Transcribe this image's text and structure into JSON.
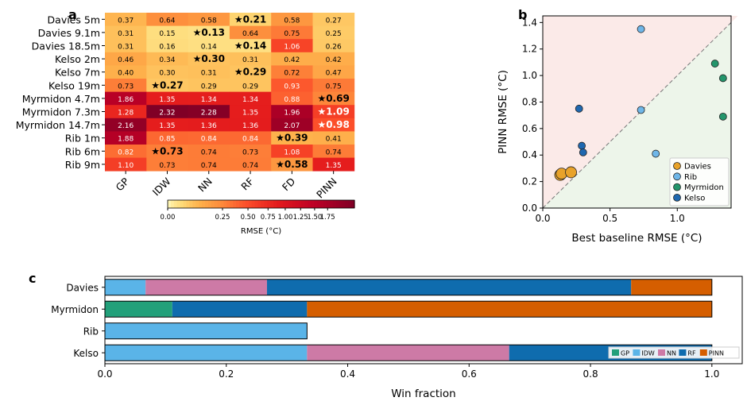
{
  "panel_labels": {
    "a": "a",
    "b": "b",
    "c": "c"
  },
  "chart_data": [
    {
      "type": "heatmap",
      "rows": [
        "Davies 5m",
        "Davies 9.1m",
        "Davies 18.5m",
        "Kelso 2m",
        "Kelso 7m",
        "Kelso 19m",
        "Myrmidon 4.7m",
        "Myrmidon 7.3m",
        "Myrmidon 14.7m",
        "Rib 1m",
        "Rib 6m",
        "Rib 9m"
      ],
      "columns": [
        "GP",
        "IDW",
        "NN",
        "RF",
        "FD",
        "PINN"
      ],
      "values": [
        [
          0.37,
          0.64,
          0.58,
          0.21,
          0.58,
          0.27
        ],
        [
          0.31,
          0.15,
          0.13,
          0.64,
          0.75,
          0.25
        ],
        [
          0.31,
          0.16,
          0.14,
          0.14,
          1.06,
          0.26
        ],
        [
          0.46,
          0.34,
          0.3,
          0.31,
          0.42,
          0.42
        ],
        [
          0.4,
          0.3,
          0.31,
          0.29,
          0.72,
          0.47
        ],
        [
          0.73,
          0.27,
          0.29,
          0.29,
          0.93,
          0.75
        ],
        [
          1.86,
          1.35,
          1.34,
          1.34,
          0.88,
          0.69
        ],
        [
          1.28,
          2.32,
          2.28,
          1.35,
          1.96,
          1.09
        ],
        [
          2.16,
          1.35,
          1.36,
          1.36,
          2.07,
          0.98
        ],
        [
          1.88,
          0.85,
          0.84,
          0.84,
          0.39,
          0.41
        ],
        [
          0.82,
          0.73,
          0.74,
          0.73,
          1.08,
          0.74
        ],
        [
          1.1,
          0.73,
          0.74,
          0.74,
          0.58,
          1.35
        ]
      ],
      "cell_labels": [
        [
          "0.37",
          "0.64",
          "0.58",
          "★0.21",
          "0.58",
          "0.27"
        ],
        [
          "0.31",
          "0.15",
          "★0.13",
          "0.64",
          "0.75",
          "0.25"
        ],
        [
          "0.31",
          "0.16",
          "0.14",
          "★0.14",
          "1.06",
          "0.26"
        ],
        [
          "0.46",
          "0.34",
          "★0.30",
          "0.31",
          "0.42",
          "0.42"
        ],
        [
          "0.40",
          "0.30",
          "0.31",
          "★0.29",
          "0.72",
          "0.47"
        ],
        [
          "0.73",
          "★0.27",
          "0.29",
          "0.29",
          "0.93",
          "0.75"
        ],
        [
          "1.86",
          "1.35",
          "1.34",
          "1.34",
          "0.88",
          "★0.69"
        ],
        [
          "1.28",
          "2.32",
          "2.28",
          "1.35",
          "1.96",
          "★1.09"
        ],
        [
          "2.16",
          "1.35",
          "1.36",
          "1.36",
          "2.07",
          "★0.98"
        ],
        [
          "1.88",
          "0.85",
          "0.84",
          "0.84",
          "★0.39",
          "0.41"
        ],
        [
          "0.82",
          "★0.73",
          "0.74",
          "0.73",
          "1.08",
          "0.74"
        ],
        [
          "1.10",
          "0.73",
          "0.74",
          "0.74",
          "★0.58",
          "1.35"
        ]
      ],
      "best_cells": [
        [
          0,
          3
        ],
        [
          1,
          2
        ],
        [
          2,
          3
        ],
        [
          3,
          2
        ],
        [
          4,
          3
        ],
        [
          5,
          1
        ],
        [
          6,
          5
        ],
        [
          7,
          5
        ],
        [
          8,
          5
        ],
        [
          9,
          4
        ],
        [
          10,
          1
        ],
        [
          11,
          4
        ]
      ],
      "colormap": "YlOrRd",
      "colorbar": {
        "label": "RMSE (°C)",
        "ticks": [
          0.0,
          0.25,
          0.5,
          0.75,
          1.0,
          1.25,
          1.5,
          1.75
        ],
        "tick_labels": [
          "0.00",
          "0.25",
          "0.50",
          "0.75",
          "1.00",
          "1.25",
          "1.50",
          "1.75"
        ],
        "vmin": 0.0,
        "vmax": 2.32,
        "scale": "power"
      }
    },
    {
      "type": "scatter",
      "xlabel": "Best baseline RMSE (°C)",
      "ylabel": "PINN RMSE (°C)",
      "xlim": [
        0.0,
        1.4
      ],
      "ylim": [
        0.0,
        1.45
      ],
      "xticks": [
        0.0,
        0.5,
        1.0
      ],
      "xtick_labels": [
        "0.0",
        "0.5",
        "1.0"
      ],
      "yticks": [
        0.0,
        0.2,
        0.4,
        0.6,
        0.8,
        1.0,
        1.2,
        1.4
      ],
      "ytick_labels": [
        "0.0",
        "0.2",
        "0.4",
        "0.6",
        "0.8",
        "1.0",
        "1.2",
        "1.4"
      ],
      "diagonal": "y = x (dashed)",
      "region_colors": {
        "above": "#fbeae8",
        "below": "#edf5ea"
      },
      "legend_position": "lower-right",
      "series": [
        {
          "name": "Davies",
          "color": "#e8a22a",
          "points": [
            [
              0.13,
              0.25
            ],
            [
              0.14,
              0.26
            ],
            [
              0.21,
              0.27
            ]
          ]
        },
        {
          "name": "Rib",
          "color": "#6fb6e8",
          "points": [
            [
              0.73,
              1.35
            ],
            [
              0.73,
              0.74
            ],
            [
              0.84,
              0.41
            ]
          ]
        },
        {
          "name": "Myrmidon",
          "color": "#23956b",
          "points": [
            [
              1.28,
              1.09
            ],
            [
              1.34,
              0.98
            ],
            [
              1.34,
              0.69
            ]
          ]
        },
        {
          "name": "Kelso",
          "color": "#1f68b0",
          "points": [
            [
              0.27,
              0.75
            ],
            [
              0.29,
              0.47
            ],
            [
              0.3,
              0.42
            ]
          ]
        }
      ]
    },
    {
      "type": "bar",
      "orientation": "horizontal",
      "stacked": true,
      "xlabel": "Win fraction",
      "xlim": [
        0.0,
        1.05
      ],
      "xticks": [
        0.0,
        0.2,
        0.4,
        0.6,
        0.8,
        1.0
      ],
      "xtick_labels": [
        "0.0",
        "0.2",
        "0.4",
        "0.6",
        "0.8",
        "1.0"
      ],
      "categories": [
        "Davies",
        "Myrmidon",
        "Rib",
        "Kelso"
      ],
      "legend_position": "lower-right",
      "series": [
        {
          "name": "GP",
          "color": "#22a07a",
          "values": [
            0.0,
            0.111,
            0.0,
            0.0
          ]
        },
        {
          "name": "IDW",
          "color": "#5ab4e8",
          "values": [
            0.067,
            0.0,
            0.333,
            0.333
          ]
        },
        {
          "name": "NN",
          "color": "#cd7aa6",
          "values": [
            0.2,
            0.0,
            0.0,
            0.333
          ]
        },
        {
          "name": "RF",
          "color": "#0f6cae",
          "values": [
            0.6,
            0.222,
            0.0,
            0.334
          ]
        },
        {
          "name": "PINN",
          "color": "#d55e00",
          "values": [
            0.133,
            0.667,
            0.0,
            0.0
          ]
        }
      ]
    }
  ]
}
